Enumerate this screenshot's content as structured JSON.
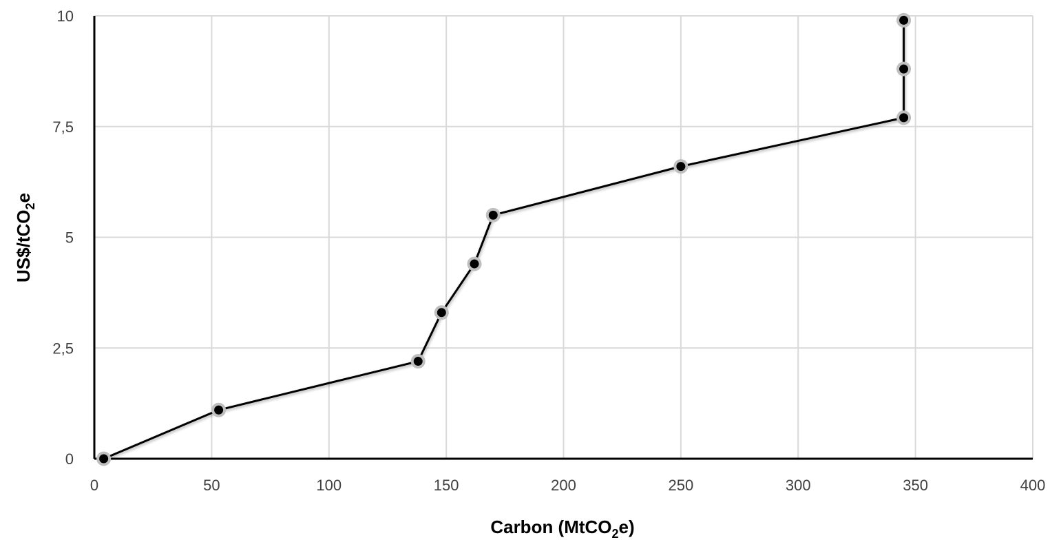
{
  "chart_data": {
    "type": "line",
    "title": "",
    "xlabel": {
      "prefix": "Carbon  (MtCO",
      "sub": "2",
      "suffix": "e)"
    },
    "ylabel": {
      "prefix": "US$/tCO",
      "sub": "2",
      "suffix": "e"
    },
    "xlim": [
      0,
      400
    ],
    "ylim": [
      0,
      10
    ],
    "x_ticks": [
      0,
      50,
      100,
      150,
      200,
      250,
      300,
      350,
      400
    ],
    "x_tick_labels": [
      "0",
      "50",
      "100",
      "150",
      "200",
      "250",
      "300",
      "350",
      "400"
    ],
    "y_ticks": [
      0,
      2.5,
      5,
      7.5,
      10
    ],
    "y_tick_labels": [
      "0",
      "2,5",
      "5",
      "7,5",
      "10"
    ],
    "grid": true,
    "legend": "none",
    "series": [
      {
        "x": [
          4,
          53,
          138,
          148,
          162,
          170,
          250,
          345,
          345,
          345
        ],
        "y": [
          0,
          1.1,
          2.2,
          3.3,
          4.4,
          5.5,
          6.6,
          7.7,
          8.8,
          9.9
        ]
      }
    ],
    "colors": {
      "line": "#000000",
      "marker_fill": "#000000",
      "marker_halo": "#bfbfbf",
      "grid": "#d9d9d9",
      "axis": "#000000",
      "tick_text": "#404040"
    }
  }
}
